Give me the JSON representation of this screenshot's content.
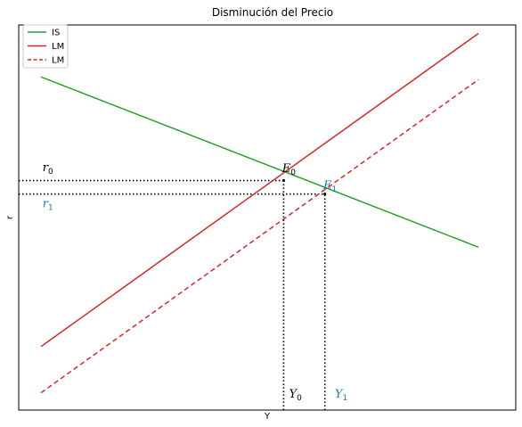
{
  "chart_data": {
    "type": "line",
    "title": "Disminución del Precio",
    "xlabel": "Y",
    "ylabel": "r",
    "xlim": [
      0,
      100
    ],
    "ylim": [
      0,
      100
    ],
    "grid": false,
    "legend_position": "top-left",
    "series": [
      {
        "name": "IS",
        "color": "#2ca02c",
        "dash": "solid",
        "x": [
          4.5,
          92.5
        ],
        "y": [
          86.5,
          42.3
        ]
      },
      {
        "name": "LM",
        "color": "#d62728",
        "dash": "solid",
        "x": [
          4.5,
          92.5
        ],
        "y": [
          16.5,
          97.8
        ]
      },
      {
        "name": "LM",
        "color": "#d62728",
        "dash": "dashed",
        "x": [
          4.5,
          92.5
        ],
        "y": [
          4.5,
          85.8
        ]
      }
    ],
    "guides": [
      {
        "x": [
          -2,
          53.3
        ],
        "y": [
          59.6,
          59.6
        ]
      },
      {
        "x": [
          53.3,
          53.3
        ],
        "y": [
          0,
          59.6
        ]
      },
      {
        "x": [
          -2,
          61.6
        ],
        "y": [
          56.1,
          56.1
        ]
      },
      {
        "x": [
          61.6,
          61.6
        ],
        "y": [
          0,
          56.1
        ]
      }
    ],
    "points": [
      {
        "x": 53.3,
        "y": 59.6
      },
      {
        "x": 61.6,
        "y": 56.1
      }
    ],
    "annotations": [
      {
        "base": "E",
        "sub": "0",
        "x": 53.0,
        "y": 61.8,
        "color": "#000000"
      },
      {
        "base": "E",
        "sub": "1",
        "x": 61.3,
        "y": 57.4,
        "color": "#1f77b4"
      },
      {
        "base": "r",
        "sub": "0",
        "x": 4.8,
        "y": 62.0,
        "color": "#000000"
      },
      {
        "base": "r",
        "sub": "1",
        "x": 4.8,
        "y": 52.7,
        "color": "#1f77b4"
      },
      {
        "base": "Y",
        "sub": "0",
        "x": 54.4,
        "y": 3.2,
        "color": "#000000"
      },
      {
        "base": "Y",
        "sub": "1",
        "x": 63.6,
        "y": 3.2,
        "color": "#1f77b4"
      }
    ]
  }
}
